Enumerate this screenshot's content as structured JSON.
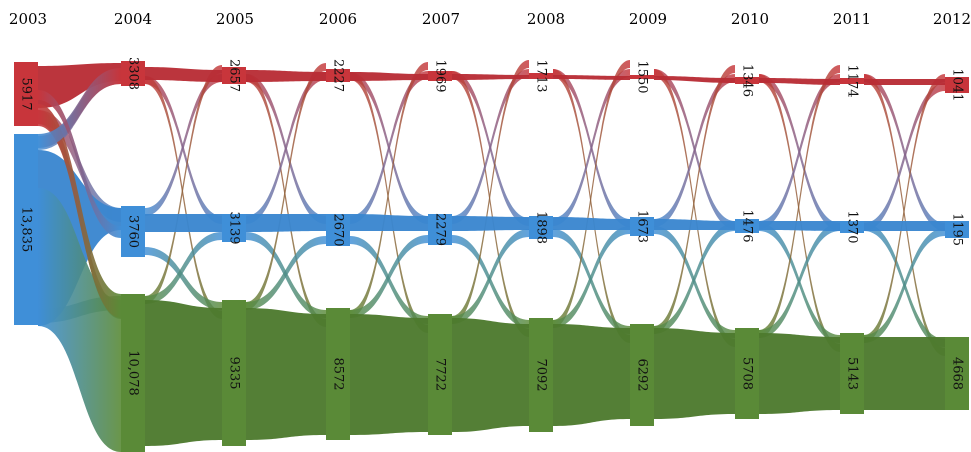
{
  "chart_data": {
    "type": "sankey",
    "title": "",
    "years": [
      "2003",
      "2004",
      "2005",
      "2006",
      "2007",
      "2008",
      "2009",
      "2010",
      "2011",
      "2012"
    ],
    "series": [
      {
        "name": "",
        "color": "#c8353b",
        "labels": [
          "5917",
          "3308",
          "2657",
          "2227",
          "1969",
          "1713",
          "1550",
          "1346",
          "1174",
          "1041"
        ]
      },
      {
        "name": "",
        "color": "#3f8fd8",
        "labels": [
          "13,835",
          "3760",
          "3139",
          "2670",
          "2279",
          "1898",
          "1673",
          "1476",
          "1370",
          "1195"
        ]
      },
      {
        "name": "",
        "color": "#5a8a37",
        "labels": [
          "",
          "10,078",
          "9335",
          "8572",
          "7722",
          "7092",
          "6292",
          "5708",
          "5143",
          "4668"
        ]
      }
    ]
  }
}
